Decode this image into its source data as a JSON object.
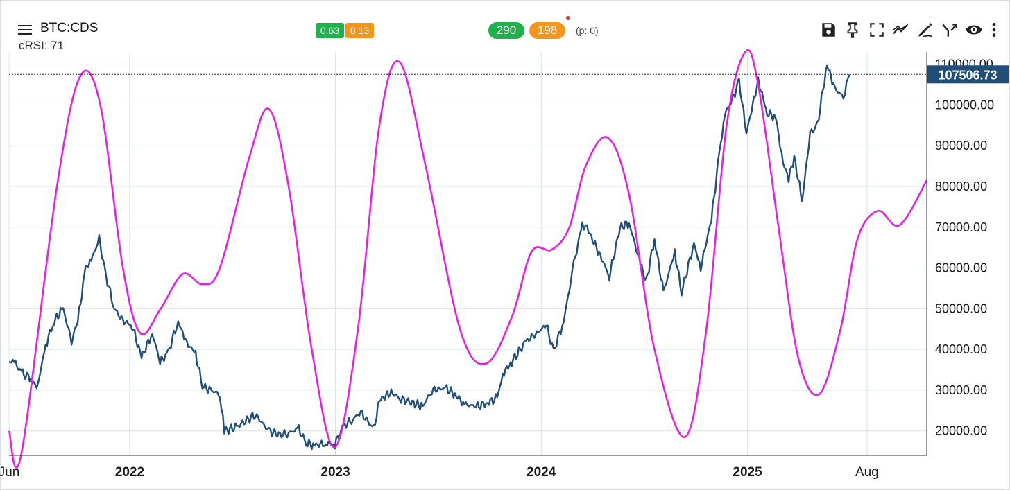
{
  "header": {
    "symbol": "BTC:CDS",
    "indicator": "cRSI: 71",
    "small_badges": [
      "0.63",
      "0.13"
    ],
    "pills": [
      "290",
      "198"
    ],
    "period_label": "(p: 0)"
  },
  "toolbar": {
    "icons": [
      "save-icon",
      "pin-icon",
      "fullscreen-icon",
      "trend-icon",
      "draw-icon",
      "merge-icon",
      "eye-icon",
      "more-icon"
    ]
  },
  "colors": {
    "price_line": "#1f4e79",
    "cycle_line": "#e81ee8",
    "grid": "#d7e4f0",
    "price_tag_bg": "#1f4e79",
    "badge_green": "#1fb24a",
    "badge_orange": "#f4961c"
  },
  "chart_data": {
    "type": "line",
    "current_price_label": "107506.73",
    "current_price": 107506.73,
    "y_ticks": [
      {
        "value": 110000,
        "label": "110000.00"
      },
      {
        "value": 100000,
        "label": "100000.00"
      },
      {
        "value": 90000,
        "label": "90000.00"
      },
      {
        "value": 80000,
        "label": "80000.00"
      },
      {
        "value": 70000,
        "label": "70000.00"
      },
      {
        "value": 60000,
        "label": "60000.00"
      },
      {
        "value": 50000,
        "label": "50000.00"
      },
      {
        "value": 40000,
        "label": "40000.00"
      },
      {
        "value": 30000,
        "label": "30000.00"
      },
      {
        "value": 20000,
        "label": "20000.00"
      }
    ],
    "ylim": [
      14000,
      113000
    ],
    "xlim": [
      "2021-06-01",
      "2025-11-15"
    ],
    "x_ticks": [
      {
        "date": "2021-06-01",
        "label": "Jun",
        "bold": false
      },
      {
        "date": "2022-01-01",
        "label": "2022",
        "bold": true
      },
      {
        "date": "2023-01-01",
        "label": "2023",
        "bold": true
      },
      {
        "date": "2024-01-01",
        "label": "2024",
        "bold": true
      },
      {
        "date": "2025-01-01",
        "label": "2025",
        "bold": true
      },
      {
        "date": "2025-08-01",
        "label": "Aug",
        "bold": false
      }
    ],
    "grid": true,
    "series": [
      {
        "key": "price",
        "points": [
          [
            "2021-06-01",
            37000
          ],
          [
            "2021-06-10",
            37000
          ],
          [
            "2021-06-25",
            34000
          ],
          [
            "2021-07-10",
            33000
          ],
          [
            "2021-07-20",
            30000
          ],
          [
            "2021-08-05",
            41000
          ],
          [
            "2021-08-20",
            47000
          ],
          [
            "2021-09-05",
            50000
          ],
          [
            "2021-09-20",
            42000
          ],
          [
            "2021-10-01",
            47000
          ],
          [
            "2021-10-15",
            60000
          ],
          [
            "2021-10-25",
            62000
          ],
          [
            "2021-11-08",
            67000
          ],
          [
            "2021-11-20",
            58000
          ],
          [
            "2021-12-05",
            50000
          ],
          [
            "2021-12-20",
            47000
          ],
          [
            "2022-01-05",
            46000
          ],
          [
            "2022-01-22",
            38000
          ],
          [
            "2022-02-10",
            44000
          ],
          [
            "2022-02-24",
            37000
          ],
          [
            "2022-03-10",
            39000
          ],
          [
            "2022-03-28",
            47000
          ],
          [
            "2022-04-10",
            42000
          ],
          [
            "2022-04-28",
            39000
          ],
          [
            "2022-05-10",
            31000
          ],
          [
            "2022-05-25",
            30000
          ],
          [
            "2022-06-10",
            29000
          ],
          [
            "2022-06-18",
            20000
          ],
          [
            "2022-07-10",
            21000
          ],
          [
            "2022-08-12",
            24000
          ],
          [
            "2022-09-05",
            20000
          ],
          [
            "2022-09-25",
            19000
          ],
          [
            "2022-10-10",
            19500
          ],
          [
            "2022-10-28",
            20500
          ],
          [
            "2022-11-10",
            17000
          ],
          [
            "2022-11-25",
            16500
          ],
          [
            "2022-12-15",
            17000
          ],
          [
            "2022-12-31",
            16700
          ],
          [
            "2023-01-15",
            21000
          ],
          [
            "2023-02-01",
            23000
          ],
          [
            "2023-02-15",
            24500
          ],
          [
            "2023-03-10",
            20500
          ],
          [
            "2023-03-20",
            27500
          ],
          [
            "2023-04-10",
            29500
          ],
          [
            "2023-04-25",
            28000
          ],
          [
            "2023-05-15",
            27000
          ],
          [
            "2023-06-05",
            26000
          ],
          [
            "2023-06-21",
            30000
          ],
          [
            "2023-07-15",
            30500
          ],
          [
            "2023-08-01",
            29000
          ],
          [
            "2023-08-18",
            26500
          ],
          [
            "2023-09-10",
            26000
          ],
          [
            "2023-09-28",
            27000
          ],
          [
            "2023-10-15",
            28000
          ],
          [
            "2023-10-25",
            34000
          ],
          [
            "2023-11-10",
            37000
          ],
          [
            "2023-12-05",
            42000
          ],
          [
            "2023-12-20",
            43500
          ],
          [
            "2024-01-10",
            46000
          ],
          [
            "2024-01-23",
            39500
          ],
          [
            "2024-02-10",
            47000
          ],
          [
            "2024-02-28",
            61000
          ],
          [
            "2024-03-14",
            71000
          ],
          [
            "2024-03-25",
            69000
          ],
          [
            "2024-04-15",
            63000
          ],
          [
            "2024-05-01",
            58000
          ],
          [
            "2024-05-20",
            70000
          ],
          [
            "2024-06-05",
            71000
          ],
          [
            "2024-06-25",
            61000
          ],
          [
            "2024-07-05",
            56500
          ],
          [
            "2024-07-20",
            67000
          ],
          [
            "2024-08-05",
            54000
          ],
          [
            "2024-08-25",
            64000
          ],
          [
            "2024-09-06",
            54000
          ],
          [
            "2024-09-28",
            66000
          ],
          [
            "2024-10-10",
            60000
          ],
          [
            "2024-10-29",
            72000
          ],
          [
            "2024-11-12",
            88000
          ],
          [
            "2024-11-22",
            98000
          ],
          [
            "2024-12-05",
            101000
          ],
          [
            "2024-12-17",
            106000
          ],
          [
            "2024-12-30",
            93000
          ],
          [
            "2025-01-20",
            106000
          ],
          [
            "2025-02-05",
            98000
          ],
          [
            "2025-02-20",
            97000
          ],
          [
            "2025-03-05",
            86000
          ],
          [
            "2025-03-15",
            82000
          ],
          [
            "2025-03-25",
            87000
          ],
          [
            "2025-04-08",
            76500
          ],
          [
            "2025-04-22",
            93000
          ],
          [
            "2025-05-05",
            95000
          ],
          [
            "2025-05-22",
            110000
          ],
          [
            "2025-06-05",
            104000
          ],
          [
            "2025-06-20",
            102000
          ],
          [
            "2025-07-01",
            107506.73
          ]
        ]
      },
      {
        "key": "cycle",
        "points": [
          [
            "2021-06-01",
            20000
          ],
          [
            "2021-06-23",
            14500
          ],
          [
            "2021-08-25",
            80000
          ],
          [
            "2021-10-05",
            107000
          ],
          [
            "2021-11-10",
            100000
          ],
          [
            "2021-12-20",
            60000
          ],
          [
            "2022-01-20",
            44000
          ],
          [
            "2022-02-25",
            50000
          ],
          [
            "2022-04-05",
            58500
          ],
          [
            "2022-05-10",
            56000
          ],
          [
            "2022-06-10",
            60000
          ],
          [
            "2022-08-01",
            87000
          ],
          [
            "2022-09-05",
            99000
          ],
          [
            "2022-10-10",
            80000
          ],
          [
            "2022-11-20",
            40000
          ],
          [
            "2022-12-31",
            16000
          ],
          [
            "2023-02-10",
            45000
          ],
          [
            "2023-03-20",
            95000
          ],
          [
            "2023-04-25",
            110500
          ],
          [
            "2023-06-10",
            85000
          ],
          [
            "2023-08-10",
            45000
          ],
          [
            "2023-09-25",
            36500
          ],
          [
            "2023-11-10",
            48000
          ],
          [
            "2023-12-15",
            64000
          ],
          [
            "2024-01-20",
            64500
          ],
          [
            "2024-02-20",
            70000
          ],
          [
            "2024-03-20",
            85000
          ],
          [
            "2024-04-28",
            92000
          ],
          [
            "2024-06-05",
            78000
          ],
          [
            "2024-07-20",
            40000
          ],
          [
            "2024-09-12",
            18500
          ],
          [
            "2024-10-20",
            45000
          ],
          [
            "2024-11-25",
            95000
          ],
          [
            "2024-12-28",
            113000
          ],
          [
            "2025-01-20",
            105000
          ],
          [
            "2025-02-25",
            70000
          ],
          [
            "2025-04-01",
            38000
          ],
          [
            "2025-05-08",
            29000
          ],
          [
            "2025-06-15",
            45000
          ],
          [
            "2025-07-15",
            67000
          ],
          [
            "2025-08-20",
            74000
          ],
          [
            "2025-09-28",
            70500
          ],
          [
            "2025-11-15",
            81500
          ]
        ]
      }
    ]
  }
}
